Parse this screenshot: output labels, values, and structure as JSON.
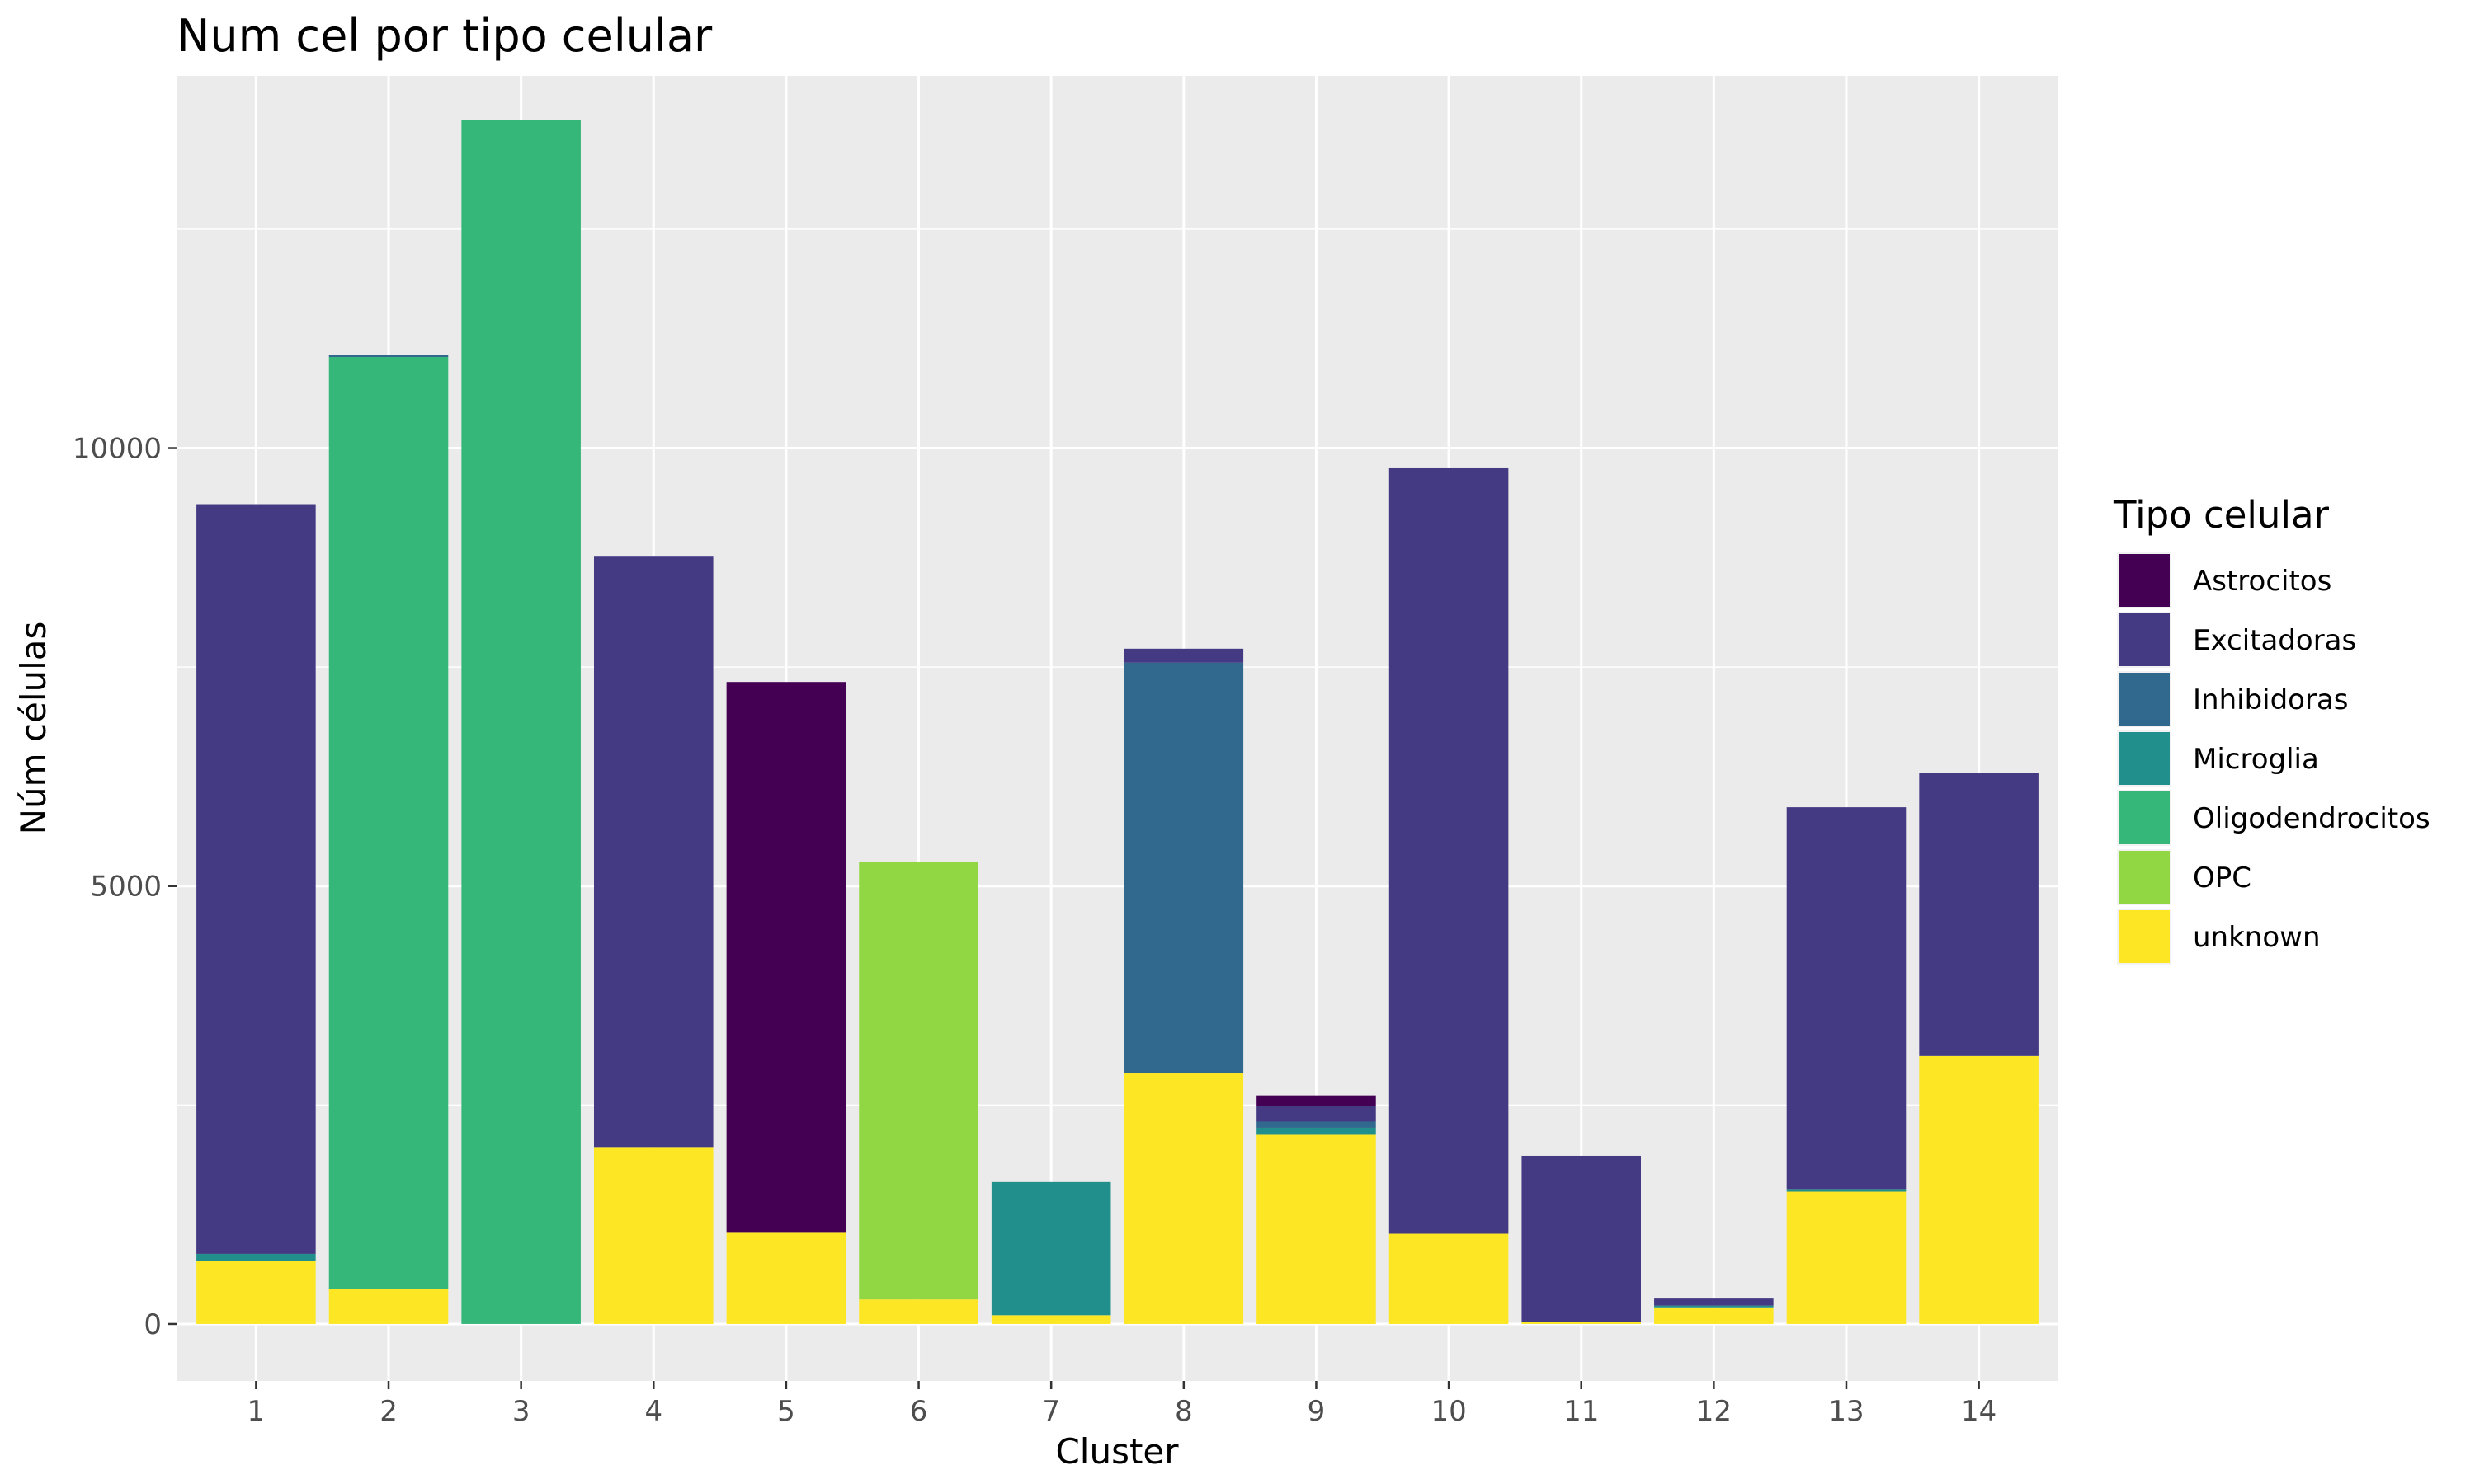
{
  "chart_data": {
    "type": "bar",
    "stacked": true,
    "title": "Num cel por tipo celular",
    "xlabel": "Cluster",
    "ylabel": "Núm células",
    "categories": [
      "1",
      "2",
      "3",
      "4",
      "5",
      "6",
      "7",
      "8",
      "9",
      "10",
      "11",
      "12",
      "13",
      "14"
    ],
    "ylim": [
      -650,
      14250
    ],
    "yticks": [
      0,
      5000,
      10000
    ],
    "ytick_labels": [
      "0",
      "5000",
      "10000"
    ],
    "grid": true,
    "legend": {
      "title": "Tipo celular",
      "position": "right"
    },
    "series": [
      {
        "name": "unknown",
        "color": "#FDE725",
        "values": [
          720,
          400,
          0,
          2020,
          1050,
          280,
          100,
          2870,
          2160,
          1030,
          20,
          190,
          1510,
          3060
        ]
      },
      {
        "name": "OPC",
        "color": "#90D743",
        "values": [
          0,
          0,
          0,
          0,
          0,
          5000,
          0,
          0,
          0,
          0,
          0,
          0,
          0,
          0
        ]
      },
      {
        "name": "Oligodendrocitos",
        "color": "#35B779",
        "values": [
          0,
          10640,
          13750,
          0,
          0,
          0,
          0,
          0,
          0,
          0,
          0,
          0,
          0,
          0
        ]
      },
      {
        "name": "Microglia",
        "color": "#21908C",
        "values": [
          80,
          0,
          0,
          0,
          0,
          0,
          1520,
          0,
          80,
          0,
          0,
          20,
          30,
          0
        ]
      },
      {
        "name": "Inhibidoras",
        "color": "#31688E",
        "values": [
          0,
          20,
          0,
          0,
          0,
          0,
          0,
          4680,
          70,
          0,
          0,
          0,
          0,
          0
        ]
      },
      {
        "name": "Excitadoras",
        "color": "#443A83",
        "values": [
          8560,
          0,
          0,
          6750,
          0,
          0,
          0,
          160,
          180,
          8740,
          1900,
          80,
          4360,
          3230
        ]
      },
      {
        "name": "Astrocitos",
        "color": "#440154",
        "values": [
          0,
          0,
          0,
          0,
          6280,
          0,
          0,
          0,
          120,
          0,
          0,
          0,
          0,
          0
        ]
      }
    ],
    "legend_order": [
      "Astrocitos",
      "Excitadoras",
      "Inhibidoras",
      "Microglia",
      "Oligodendrocitos",
      "OPC",
      "unknown"
    ]
  }
}
